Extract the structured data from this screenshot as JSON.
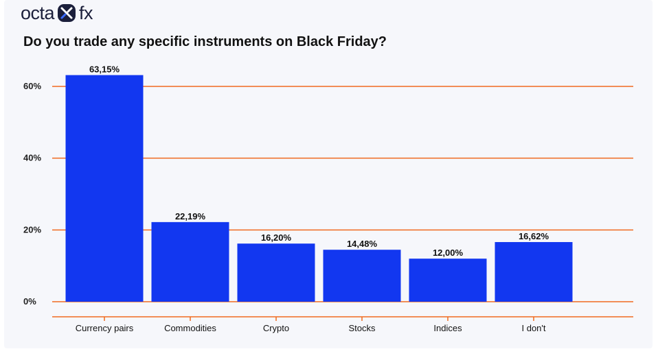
{
  "brand": {
    "logo_left": "octa",
    "logo_right": "fx",
    "logo_icon": "octafx-logo-icon",
    "accent": "#1237f0"
  },
  "chart_data": {
    "type": "bar",
    "title": "Do you trade any specific instruments on Black Friday?",
    "categories": [
      "Currency pairs",
      "Commodities",
      "Crypto",
      "Stocks",
      "Indices",
      "I don't"
    ],
    "values": [
      63.15,
      22.19,
      16.2,
      14.48,
      12.0,
      16.62
    ],
    "value_labels": [
      "63,15%",
      "22,19%",
      "16,20%",
      "14,48%",
      "12,00%",
      "16,62%"
    ],
    "ylim": [
      0,
      60
    ],
    "yticks": [
      0,
      20,
      40,
      60
    ],
    "ytick_labels": [
      "0%",
      "20%",
      "40%",
      "60%"
    ],
    "xlabel": "",
    "ylabel": "",
    "grid": true,
    "bar_color": "#1237f0",
    "grid_color": "#f06a1f"
  }
}
